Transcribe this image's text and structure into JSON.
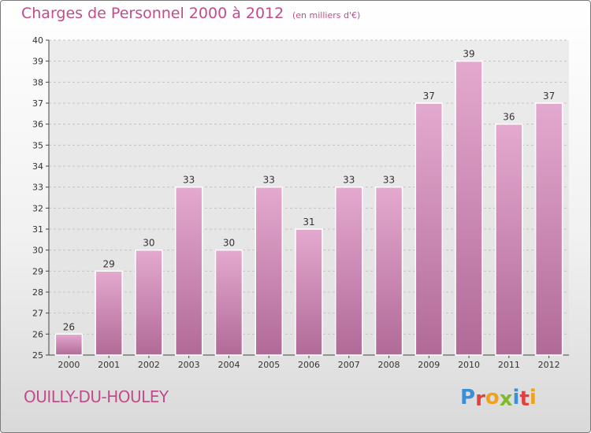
{
  "title": "Charges de Personnel 2000 à 2012",
  "subtitle": "(en milliers d'€)",
  "commune": "OUILLY-DU-HOULEY",
  "logo": {
    "letters": [
      "P",
      "r",
      "o",
      "x",
      "i",
      "t",
      "i"
    ],
    "colors": [
      "#3a8fd8",
      "#e23f3f",
      "#f0a21b",
      "#7fba2a",
      "#3a8fd8",
      "#e23f3f",
      "#f0a21b"
    ]
  },
  "colors": {
    "accent": "#c14c8a",
    "bar_top": "#e4a9cf",
    "bar_bottom": "#b16a97"
  },
  "chart_data": {
    "type": "bar",
    "categories": [
      "2000",
      "2001",
      "2002",
      "2003",
      "2004",
      "2005",
      "2006",
      "2007",
      "2008",
      "2009",
      "2010",
      "2011",
      "2012"
    ],
    "values": [
      26,
      29,
      30,
      33,
      30,
      33,
      31,
      33,
      33,
      37,
      39,
      36,
      37
    ],
    "data_labels": [
      "26",
      "29",
      "30",
      "33",
      "30",
      "33",
      "31",
      "33",
      "33",
      "37",
      "39",
      "36",
      "37"
    ],
    "y_ticks": [
      "25",
      "26",
      "27",
      "28",
      "29",
      "30",
      "31",
      "32",
      "33",
      "34",
      "35",
      "36",
      "37",
      "38",
      "39",
      "40"
    ],
    "ylim": [
      25,
      40
    ],
    "grid": true,
    "title": "Charges de Personnel 2000 à 2012",
    "xlabel": "",
    "ylabel": ""
  }
}
